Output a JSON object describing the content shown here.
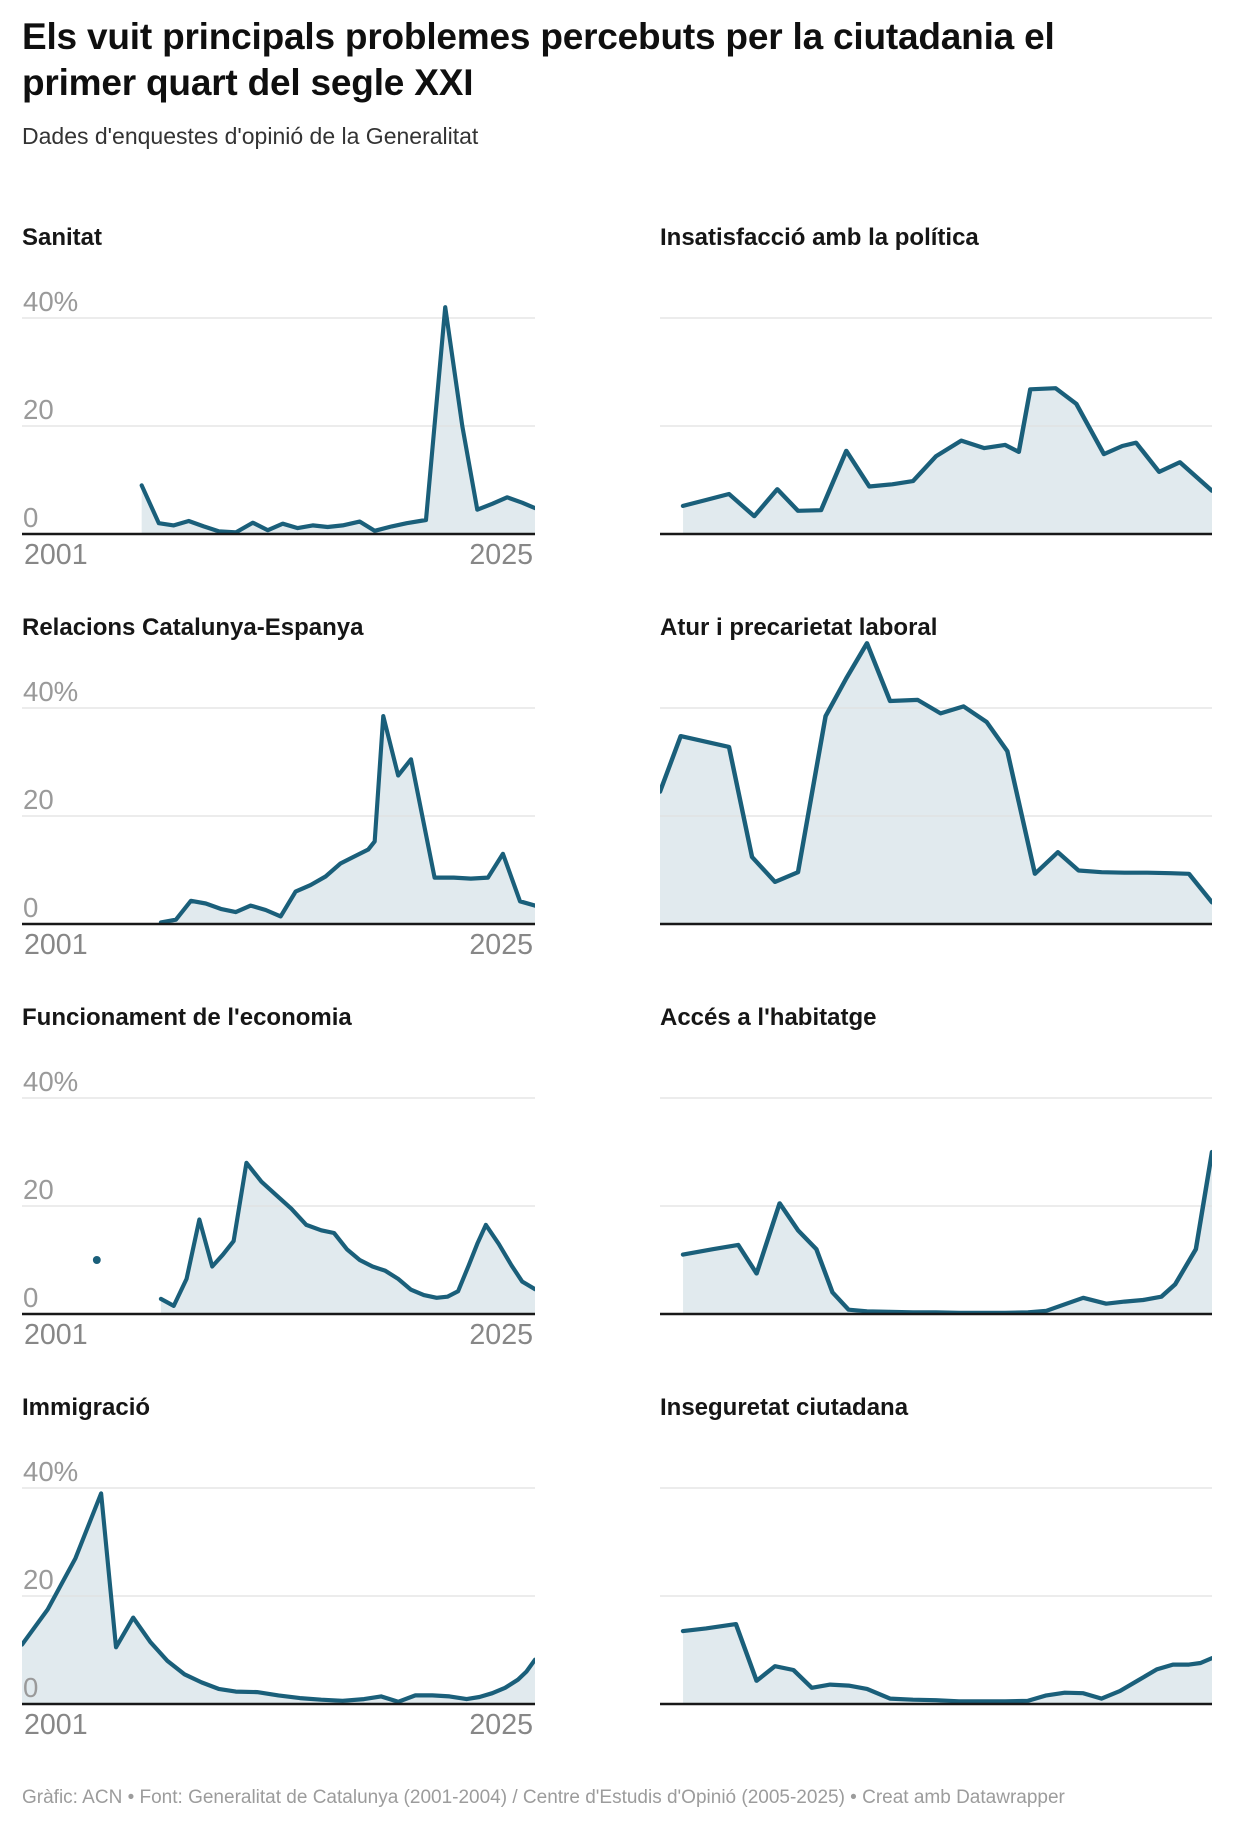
{
  "header": {
    "title": "Els vuit principals problemes percebuts per la ciutadania el primer quart del segle XXI",
    "subtitle": "Dades d'enquestes d'opinió de la Generalitat"
  },
  "axis": {
    "x_min": 2001,
    "x_max": 2025,
    "x_tick_labels": [
      "2001",
      "2025"
    ],
    "y_ticks": [
      {
        "label": "40%",
        "value": 40
      },
      {
        "label": "20",
        "value": 20
      },
      {
        "label": "0",
        "value": 0
      }
    ],
    "y_gridline_values": [
      40,
      20
    ],
    "ylim": [
      0,
      52
    ],
    "grid": "horizontal-only",
    "legend": "none"
  },
  "style": {
    "line_color": "#1a5f7a",
    "fill_color": "#1a5f7a",
    "fill_opacity": 0.13,
    "grid_color": "#e0e0e0",
    "axis_color": "#181818",
    "y_label_color": "#9a9a9a",
    "x_label_color": "#878787"
  },
  "chart_data": [
    {
      "type": "area",
      "title": "Sanitat",
      "unit": "%",
      "show_x_labels": true,
      "show_y_labels": true,
      "points": [
        [
          2006.6,
          9
        ],
        [
          2007.4,
          2
        ],
        [
          2008.1,
          1.6
        ],
        [
          2008.8,
          2.4
        ],
        [
          2009.5,
          1.4
        ],
        [
          2010.2,
          0.5
        ],
        [
          2011,
          0.3
        ],
        [
          2011.8,
          2.1
        ],
        [
          2012.5,
          0.7
        ],
        [
          2013.2,
          1.9
        ],
        [
          2013.9,
          1.1
        ],
        [
          2014.6,
          1.6
        ],
        [
          2015.3,
          1.3
        ],
        [
          2016,
          1.6
        ],
        [
          2016.8,
          2.3
        ],
        [
          2017.5,
          0.6
        ],
        [
          2018.3,
          1.4
        ],
        [
          2019,
          2
        ],
        [
          2019.9,
          2.6
        ],
        [
          2020.8,
          42
        ],
        [
          2021.6,
          20
        ],
        [
          2022.3,
          4.5
        ],
        [
          2023,
          5.6
        ],
        [
          2023.7,
          6.8
        ],
        [
          2024.4,
          5.8
        ],
        [
          2025,
          4.8
        ]
      ]
    },
    {
      "type": "area",
      "title": "Insatisfacció amb la política",
      "unit": "%",
      "show_x_labels": false,
      "show_y_labels": false,
      "points": [
        [
          2002,
          5.2
        ],
        [
          2003,
          6.3
        ],
        [
          2004,
          7.4
        ],
        [
          2005.1,
          3.3
        ],
        [
          2006.1,
          8.3
        ],
        [
          2007,
          4.3
        ],
        [
          2008,
          4.4
        ],
        [
          2009.1,
          15.4
        ],
        [
          2010.1,
          8.8
        ],
        [
          2011.1,
          9.2
        ],
        [
          2012,
          9.8
        ],
        [
          2013,
          14.4
        ],
        [
          2014.1,
          17.3
        ],
        [
          2015.1,
          15.9
        ],
        [
          2016,
          16.5
        ],
        [
          2016.6,
          15.2
        ],
        [
          2017.1,
          26.8
        ],
        [
          2018.2,
          27
        ],
        [
          2019.1,
          24.1
        ],
        [
          2020.3,
          14.8
        ],
        [
          2021.1,
          16.3
        ],
        [
          2021.7,
          16.9
        ],
        [
          2022.7,
          11.5
        ],
        [
          2023.6,
          13.3
        ],
        [
          2025,
          8
        ]
      ]
    },
    {
      "type": "area",
      "title": "Relacions Catalunya-Espanya",
      "unit": "%",
      "show_x_labels": true,
      "show_y_labels": true,
      "points": [
        [
          2007.5,
          0.3
        ],
        [
          2008.2,
          0.8
        ],
        [
          2008.9,
          4.3
        ],
        [
          2009.6,
          3.8
        ],
        [
          2010.3,
          2.8
        ],
        [
          2011,
          2.2
        ],
        [
          2011.7,
          3.4
        ],
        [
          2012.4,
          2.6
        ],
        [
          2013.1,
          1.4
        ],
        [
          2013.8,
          6
        ],
        [
          2014.5,
          7.2
        ],
        [
          2015.2,
          8.8
        ],
        [
          2015.9,
          11.2
        ],
        [
          2016.5,
          12.4
        ],
        [
          2017.2,
          13.8
        ],
        [
          2017.5,
          15.3
        ],
        [
          2017.9,
          38.5
        ],
        [
          2018.6,
          27.5
        ],
        [
          2019.2,
          30.5
        ],
        [
          2020.3,
          8.6
        ],
        [
          2021.2,
          8.6
        ],
        [
          2022,
          8.4
        ],
        [
          2022.8,
          8.6
        ],
        [
          2023.5,
          13
        ],
        [
          2024.3,
          4.2
        ],
        [
          2025,
          3.4
        ]
      ]
    },
    {
      "type": "area",
      "title": "Atur i precarietat laboral",
      "unit": "%",
      "show_x_labels": false,
      "show_y_labels": false,
      "points": [
        [
          2001,
          24.5
        ],
        [
          2001.9,
          34.8
        ],
        [
          2004,
          32.8
        ],
        [
          2005,
          12.4
        ],
        [
          2006,
          7.8
        ],
        [
          2007,
          9.6
        ],
        [
          2008.2,
          38.5
        ],
        [
          2009.1,
          45.5
        ],
        [
          2010,
          52
        ],
        [
          2011,
          41.3
        ],
        [
          2012.2,
          41.5
        ],
        [
          2013.2,
          39
        ],
        [
          2014.2,
          40.3
        ],
        [
          2015.2,
          37.4
        ],
        [
          2016.1,
          32
        ],
        [
          2017.3,
          9.3
        ],
        [
          2018.3,
          13.3
        ],
        [
          2019.2,
          9.9
        ],
        [
          2020.2,
          9.6
        ],
        [
          2021.2,
          9.5
        ],
        [
          2022.2,
          9.5
        ],
        [
          2023.2,
          9.4
        ],
        [
          2024,
          9.3
        ],
        [
          2025,
          4
        ]
      ]
    },
    {
      "type": "area",
      "title": "Funcionament de l'economia",
      "unit": "%",
      "show_x_labels": true,
      "show_y_labels": true,
      "isolated_point": {
        "x": 2004.5,
        "y": 10
      },
      "points": [
        [
          2007.5,
          2.8
        ],
        [
          2008.1,
          1.5
        ],
        [
          2008.7,
          6.5
        ],
        [
          2009.3,
          17.5
        ],
        [
          2009.9,
          8.8
        ],
        [
          2010.4,
          11
        ],
        [
          2010.9,
          13.5
        ],
        [
          2011.5,
          28
        ],
        [
          2012.2,
          24.5
        ],
        [
          2012.9,
          22
        ],
        [
          2013.6,
          19.5
        ],
        [
          2014.3,
          16.5
        ],
        [
          2015,
          15.5
        ],
        [
          2015.6,
          15
        ],
        [
          2016.2,
          12
        ],
        [
          2016.8,
          10
        ],
        [
          2017.4,
          8.8
        ],
        [
          2018,
          8
        ],
        [
          2018.6,
          6.5
        ],
        [
          2019.2,
          4.5
        ],
        [
          2019.8,
          3.5
        ],
        [
          2020.4,
          3
        ],
        [
          2020.9,
          3.2
        ],
        [
          2021.4,
          4.2
        ],
        [
          2021.9,
          9
        ],
        [
          2022.3,
          13
        ],
        [
          2022.7,
          16.5
        ],
        [
          2023.3,
          13
        ],
        [
          2023.9,
          9
        ],
        [
          2024.4,
          6
        ],
        [
          2025,
          4.6
        ]
      ]
    },
    {
      "type": "area",
      "title": "Accés a l'habitatge",
      "unit": "%",
      "show_x_labels": false,
      "show_y_labels": false,
      "points": [
        [
          2002,
          11
        ],
        [
          2003.3,
          12
        ],
        [
          2004.4,
          12.8
        ],
        [
          2005.2,
          7.5
        ],
        [
          2006.2,
          20.5
        ],
        [
          2007,
          15.5
        ],
        [
          2007.8,
          12
        ],
        [
          2008.5,
          4
        ],
        [
          2009.2,
          0.8
        ],
        [
          2010,
          0.5
        ],
        [
          2011,
          0.4
        ],
        [
          2012,
          0.3
        ],
        [
          2013,
          0.3
        ],
        [
          2014,
          0.2
        ],
        [
          2015,
          0.2
        ],
        [
          2016,
          0.2
        ],
        [
          2017,
          0.3
        ],
        [
          2017.8,
          0.6
        ],
        [
          2018.6,
          1.8
        ],
        [
          2019.4,
          3
        ],
        [
          2020.4,
          1.9
        ],
        [
          2021.2,
          2.3
        ],
        [
          2022,
          2.6
        ],
        [
          2022.8,
          3.2
        ],
        [
          2023.4,
          5.5
        ],
        [
          2024.3,
          12
        ],
        [
          2025,
          30
        ]
      ]
    },
    {
      "type": "area",
      "title": "Immigració",
      "unit": "%",
      "show_x_labels": true,
      "show_y_labels": true,
      "points": [
        [
          2001,
          11
        ],
        [
          2002.2,
          17.5
        ],
        [
          2003.5,
          27
        ],
        [
          2004.7,
          39
        ],
        [
          2005.4,
          10.5
        ],
        [
          2006.2,
          16
        ],
        [
          2007,
          11.5
        ],
        [
          2007.8,
          8
        ],
        [
          2008.6,
          5.5
        ],
        [
          2009.4,
          4
        ],
        [
          2010.2,
          2.8
        ],
        [
          2011,
          2.3
        ],
        [
          2012,
          2.2
        ],
        [
          2013,
          1.6
        ],
        [
          2014,
          1.1
        ],
        [
          2015,
          0.8
        ],
        [
          2016,
          0.6
        ],
        [
          2017,
          0.9
        ],
        [
          2017.8,
          1.4
        ],
        [
          2018.6,
          0.4
        ],
        [
          2019.4,
          1.6
        ],
        [
          2020.2,
          1.6
        ],
        [
          2021,
          1.4
        ],
        [
          2021.8,
          0.9
        ],
        [
          2022.4,
          1.3
        ],
        [
          2023,
          2
        ],
        [
          2023.6,
          3
        ],
        [
          2024.2,
          4.5
        ],
        [
          2024.6,
          6
        ],
        [
          2025,
          8.2
        ]
      ]
    },
    {
      "type": "area",
      "title": "Inseguretat ciutadana",
      "unit": "%",
      "show_x_labels": false,
      "show_y_labels": false,
      "points": [
        [
          2002,
          13.5
        ],
        [
          2003,
          14
        ],
        [
          2004.3,
          14.8
        ],
        [
          2005.2,
          4.3
        ],
        [
          2006,
          7
        ],
        [
          2006.8,
          6.3
        ],
        [
          2007.6,
          3
        ],
        [
          2008.4,
          3.6
        ],
        [
          2009.2,
          3.4
        ],
        [
          2010,
          2.8
        ],
        [
          2011,
          1
        ],
        [
          2012,
          0.8
        ],
        [
          2013,
          0.7
        ],
        [
          2014,
          0.5
        ],
        [
          2015,
          0.5
        ],
        [
          2016,
          0.5
        ],
        [
          2017,
          0.6
        ],
        [
          2017.8,
          1.6
        ],
        [
          2018.6,
          2.1
        ],
        [
          2019.4,
          2
        ],
        [
          2020.2,
          1
        ],
        [
          2021,
          2.4
        ],
        [
          2021.8,
          4.4
        ],
        [
          2022.6,
          6.4
        ],
        [
          2023.3,
          7.3
        ],
        [
          2024,
          7.3
        ],
        [
          2024.5,
          7.6
        ],
        [
          2025,
          8.5
        ]
      ]
    }
  ],
  "footer": {
    "text": "Gràfic: ACN • Font: Generalitat de Catalunya (2001-2004) / Centre d'Estudis d'Opinió (2005-2025) • Creat amb Datawrapper"
  }
}
